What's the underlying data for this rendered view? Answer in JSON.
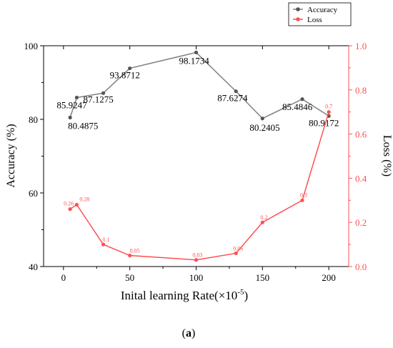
{
  "chart_data": {
    "type": "line",
    "x": [
      5,
      10,
      30,
      50,
      100,
      130,
      150,
      180,
      200
    ],
    "xlabel": "Inital learning Rate(×10",
    "xlabel_sup": "-5",
    "xlabel_end": ")",
    "xlim": [
      -15,
      215
    ],
    "xticks": [
      0,
      50,
      100,
      150,
      200
    ],
    "xtick_labels": [
      "0",
      "50",
      "100",
      "150",
      "200"
    ],
    "ylabel_left": "Accuracy (%)",
    "ylim_left": [
      40,
      100
    ],
    "yticks_left": [
      40,
      60,
      80,
      100
    ],
    "ytick_labels_left": [
      "40",
      "60",
      "80",
      "100"
    ],
    "ylabel_right": "Loss (%)",
    "ylim_right": [
      0,
      1.0
    ],
    "yticks_right": [
      0,
      0.2,
      0.4,
      0.6,
      0.8,
      1.0
    ],
    "ytick_labels_right": [
      "0.0",
      "0.2",
      "0.4",
      "0.6",
      "0.8",
      "1.0"
    ],
    "grid": false,
    "legend_position": "top-right",
    "series": [
      {
        "name": "Accuracy",
        "axis": "left",
        "color": "#808080",
        "values": [
          80.4875,
          85.9247,
          87.1275,
          93.8712,
          98.1734,
          87.6274,
          80.2405,
          85.4846,
          80.9172
        ],
        "labels": [
          "80.4875",
          "85.9247",
          "87.1275",
          "93.8712",
          "98.1734",
          "87.6274",
          "80.2405",
          "85.4846",
          "80.9172"
        ]
      },
      {
        "name": "Loss",
        "axis": "right",
        "color": "#ff5050",
        "values": [
          0.26,
          0.28,
          0.1,
          0.05,
          0.03,
          0.06,
          0.2,
          0.3,
          0.7
        ],
        "labels": [
          "0.26",
          "0.28",
          "0.1",
          "0.05",
          "0.03",
          "0.06",
          "0.2",
          "0.3",
          "0.7"
        ]
      }
    ]
  },
  "caption": {
    "open": "(",
    "letter": "a",
    "close": ")"
  }
}
